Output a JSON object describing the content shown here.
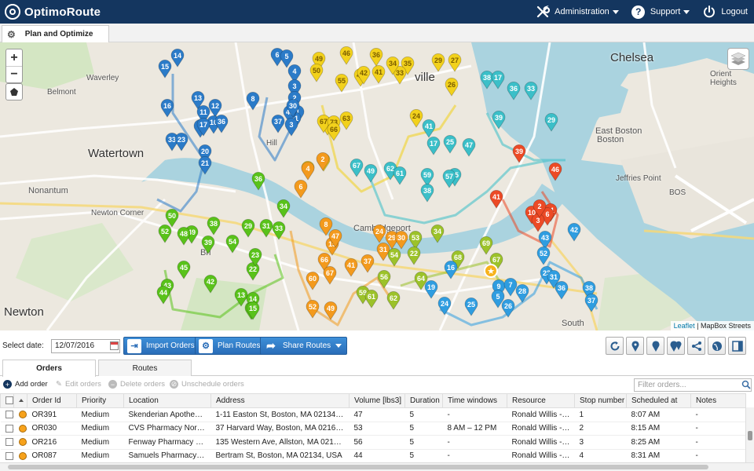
{
  "app": {
    "name": "OptimoRoute"
  },
  "topnav": {
    "administration": "Administration",
    "support": "Support",
    "logout": "Logout"
  },
  "main_tab": {
    "label": "Plan and Optimize"
  },
  "map": {
    "labels": {
      "watertown": "Watertown",
      "chelsea": "Chelsea",
      "newton": "Newton",
      "nonantum": "Nonantum",
      "newton_corner": "Newton Corner",
      "cambridgeport": "Cambridgeport",
      "east_boston": "East Boston",
      "boston_short": "Boston",
      "allston": "Allston",
      "south": "South",
      "bos": "BOS",
      "jeffries_point": "Jeffries Point",
      "orient_heights": "Orient Heights",
      "waverley": "Waverley",
      "belmont": "Belmont",
      "hill": "Hill",
      "ville": "ville",
      "brighton": "Bri"
    },
    "zoom_in": "+",
    "zoom_out": "−",
    "attribution": {
      "leaflet": "Leaflet",
      "tiles": "MapBox Streets"
    },
    "route_colors": {
      "blue_dark": "#2b7bc8",
      "yellow": "#f2d11c",
      "cyan": "#3bbfc8",
      "orange": "#f39a1d",
      "red": "#ec4a26",
      "green": "#59c21a",
      "olive": "#9cc22a",
      "sky": "#2f9de0"
    },
    "markers": [
      {
        "n": "15",
        "c": "blue_dark"
      },
      {
        "n": "14",
        "c": "blue_dark"
      },
      {
        "n": "6",
        "c": "blue_dark"
      },
      {
        "n": "5",
        "c": "blue_dark"
      },
      {
        "n": "4",
        "c": "blue_dark"
      },
      {
        "n": "3",
        "c": "blue_dark"
      },
      {
        "n": "2",
        "c": "blue_dark"
      },
      {
        "n": "1",
        "c": "blue_dark"
      },
      {
        "n": "8",
        "c": "blue_dark"
      },
      {
        "n": "16",
        "c": "blue_dark"
      },
      {
        "n": "13",
        "c": "blue_dark"
      },
      {
        "n": "12",
        "c": "blue_dark"
      },
      {
        "n": "11",
        "c": "blue_dark"
      },
      {
        "n": "10",
        "c": "blue_dark"
      },
      {
        "n": "9",
        "c": "blue_dark"
      },
      {
        "n": "17",
        "c": "blue_dark"
      },
      {
        "n": "36",
        "c": "blue_dark"
      },
      {
        "n": "37",
        "c": "blue_dark"
      },
      {
        "n": "41",
        "c": "blue_dark"
      },
      {
        "n": "40",
        "c": "blue_dark"
      },
      {
        "n": "30",
        "c": "blue_dark"
      },
      {
        "n": "3",
        "c": "blue_dark"
      },
      {
        "n": "33",
        "c": "blue_dark"
      },
      {
        "n": "23",
        "c": "blue_dark"
      },
      {
        "n": "20",
        "c": "blue_dark"
      },
      {
        "n": "21",
        "c": "blue_dark"
      },
      {
        "n": "49",
        "c": "yellow"
      },
      {
        "n": "46",
        "c": "yellow"
      },
      {
        "n": "50",
        "c": "yellow"
      },
      {
        "n": "55",
        "c": "yellow"
      },
      {
        "n": "45",
        "c": "yellow"
      },
      {
        "n": "42",
        "c": "yellow"
      },
      {
        "n": "41",
        "c": "yellow"
      },
      {
        "n": "36",
        "c": "yellow"
      },
      {
        "n": "35",
        "c": "yellow"
      },
      {
        "n": "33",
        "c": "yellow"
      },
      {
        "n": "34",
        "c": "yellow"
      },
      {
        "n": "29",
        "c": "yellow"
      },
      {
        "n": "27",
        "c": "yellow"
      },
      {
        "n": "26",
        "c": "yellow"
      },
      {
        "n": "69",
        "c": "yellow"
      },
      {
        "n": "67",
        "c": "yellow"
      },
      {
        "n": "73",
        "c": "yellow"
      },
      {
        "n": "63",
        "c": "yellow"
      },
      {
        "n": "66",
        "c": "yellow"
      },
      {
        "n": "24",
        "c": "yellow"
      },
      {
        "n": "2",
        "c": "yellow"
      },
      {
        "n": "3",
        "c": "yellow"
      },
      {
        "n": "38",
        "c": "cyan"
      },
      {
        "n": "17",
        "c": "cyan"
      },
      {
        "n": "36",
        "c": "cyan"
      },
      {
        "n": "33",
        "c": "cyan"
      },
      {
        "n": "39",
        "c": "cyan"
      },
      {
        "n": "29",
        "c": "cyan"
      },
      {
        "n": "41",
        "c": "cyan"
      },
      {
        "n": "47",
        "c": "cyan"
      },
      {
        "n": "25",
        "c": "cyan"
      },
      {
        "n": "17",
        "c": "cyan"
      },
      {
        "n": "59",
        "c": "cyan"
      },
      {
        "n": "62",
        "c": "cyan"
      },
      {
        "n": "61",
        "c": "cyan"
      },
      {
        "n": "55",
        "c": "cyan"
      },
      {
        "n": "57",
        "c": "cyan"
      },
      {
        "n": "38",
        "c": "cyan"
      },
      {
        "n": "67",
        "c": "cyan"
      },
      {
        "n": "49",
        "c": "cyan"
      },
      {
        "n": "39",
        "c": "red"
      },
      {
        "n": "46",
        "c": "red"
      },
      {
        "n": "41",
        "c": "red"
      },
      {
        "n": "11",
        "c": "red"
      },
      {
        "n": "10",
        "c": "red"
      },
      {
        "n": "6",
        "c": "red"
      },
      {
        "n": "3",
        "c": "red"
      },
      {
        "n": "2",
        "c": "red"
      },
      {
        "n": "36",
        "c": "green"
      },
      {
        "n": "34",
        "c": "green"
      },
      {
        "n": "50",
        "c": "green"
      },
      {
        "n": "52",
        "c": "green"
      },
      {
        "n": "49",
        "c": "green"
      },
      {
        "n": "48",
        "c": "green"
      },
      {
        "n": "45",
        "c": "green"
      },
      {
        "n": "39",
        "c": "green"
      },
      {
        "n": "38",
        "c": "green"
      },
      {
        "n": "54",
        "c": "green"
      },
      {
        "n": "29",
        "c": "green"
      },
      {
        "n": "31",
        "c": "green"
      },
      {
        "n": "33",
        "c": "green"
      },
      {
        "n": "42",
        "c": "green"
      },
      {
        "n": "43",
        "c": "green"
      },
      {
        "n": "44",
        "c": "green"
      },
      {
        "n": "17",
        "c": "green"
      },
      {
        "n": "13",
        "c": "green"
      },
      {
        "n": "14",
        "c": "green"
      },
      {
        "n": "15",
        "c": "green"
      },
      {
        "n": "22",
        "c": "green"
      },
      {
        "n": "23",
        "c": "green"
      },
      {
        "n": "4",
        "c": "orange"
      },
      {
        "n": "2",
        "c": "orange"
      },
      {
        "n": "6",
        "c": "orange"
      },
      {
        "n": "8",
        "c": "orange"
      },
      {
        "n": "15",
        "c": "orange"
      },
      {
        "n": "60",
        "c": "orange"
      },
      {
        "n": "66",
        "c": "orange"
      },
      {
        "n": "67",
        "c": "orange"
      },
      {
        "n": "41",
        "c": "orange"
      },
      {
        "n": "52",
        "c": "orange"
      },
      {
        "n": "49",
        "c": "orange"
      },
      {
        "n": "47",
        "c": "orange"
      },
      {
        "n": "24",
        "c": "orange"
      },
      {
        "n": "31",
        "c": "orange"
      },
      {
        "n": "37",
        "c": "orange"
      },
      {
        "n": "29",
        "c": "orange"
      },
      {
        "n": "30",
        "c": "orange"
      },
      {
        "n": "53",
        "c": "olive"
      },
      {
        "n": "54",
        "c": "olive"
      },
      {
        "n": "22",
        "c": "olive"
      },
      {
        "n": "56",
        "c": "olive"
      },
      {
        "n": "59",
        "c": "olive"
      },
      {
        "n": "61",
        "c": "olive"
      },
      {
        "n": "62",
        "c": "olive"
      },
      {
        "n": "64",
        "c": "olive"
      },
      {
        "n": "68",
        "c": "olive"
      },
      {
        "n": "69",
        "c": "olive"
      },
      {
        "n": "67",
        "c": "olive"
      },
      {
        "n": "34",
        "c": "olive"
      },
      {
        "n": "42",
        "c": "sky"
      },
      {
        "n": "43",
        "c": "sky"
      },
      {
        "n": "52",
        "c": "sky"
      },
      {
        "n": "23",
        "c": "sky"
      },
      {
        "n": "31",
        "c": "sky"
      },
      {
        "n": "36",
        "c": "sky"
      },
      {
        "n": "38",
        "c": "sky"
      },
      {
        "n": "37",
        "c": "sky"
      },
      {
        "n": "28",
        "c": "sky"
      },
      {
        "n": "26",
        "c": "sky"
      },
      {
        "n": "24",
        "c": "sky"
      },
      {
        "n": "25",
        "c": "sky"
      },
      {
        "n": "19",
        "c": "sky"
      },
      {
        "n": "16",
        "c": "sky"
      },
      {
        "n": "9",
        "c": "sky"
      },
      {
        "n": "5",
        "c": "sky"
      },
      {
        "n": "7",
        "c": "sky"
      }
    ]
  },
  "toolbar": {
    "date_label": "Select date:",
    "date_value": "12/07/2016",
    "import_orders": "Import Orders",
    "plan_routes": "Plan Routes",
    "share_routes": "Share Routes"
  },
  "bottom_tabs": {
    "orders": "Orders",
    "routes": "Routes"
  },
  "grid_actions": {
    "add_order": "Add order",
    "edit_orders": "Edit orders",
    "delete_orders": "Delete orders",
    "unschedule_orders": "Unschedule orders",
    "filter_placeholder": "Filter orders..."
  },
  "table": {
    "columns": [
      "Order Id",
      "Priority",
      "Location",
      "Address",
      "Volume [lbs3]",
      "Duration",
      "Time windows",
      "Resource",
      "Stop number",
      "Scheduled at",
      "Notes"
    ],
    "rows": [
      [
        "OR391",
        "Medium",
        "Skenderian Apothecary...",
        "1-11 Easton St, Boston, MA 02134, USA",
        "47",
        "5",
        "-",
        "Ronald Willis - Van",
        "1",
        "8:07 AM",
        "-"
      ],
      [
        "OR030",
        "Medium",
        "CVS Pharmacy North E...",
        "37 Harvard Way, Boston, MA 02163, U...",
        "53",
        "5",
        "8 AM – 12 PM",
        "Ronald Willis - Van",
        "2",
        "8:15 AM",
        "-"
      ],
      [
        "OR216",
        "Medium",
        "Fenway Pharmacy Bac...",
        "135 Western Ave, Allston, MA 02134, ...",
        "56",
        "5",
        "-",
        "Ronald Willis - Van",
        "3",
        "8:25 AM",
        "-"
      ],
      [
        "OR087",
        "Medium",
        "Samuels Pharmacy Wi...",
        "Bertram St, Boston, MA 02134, USA",
        "44",
        "5",
        "-",
        "Ronald Willis - Van",
        "4",
        "8:31 AM",
        "-"
      ]
    ]
  }
}
